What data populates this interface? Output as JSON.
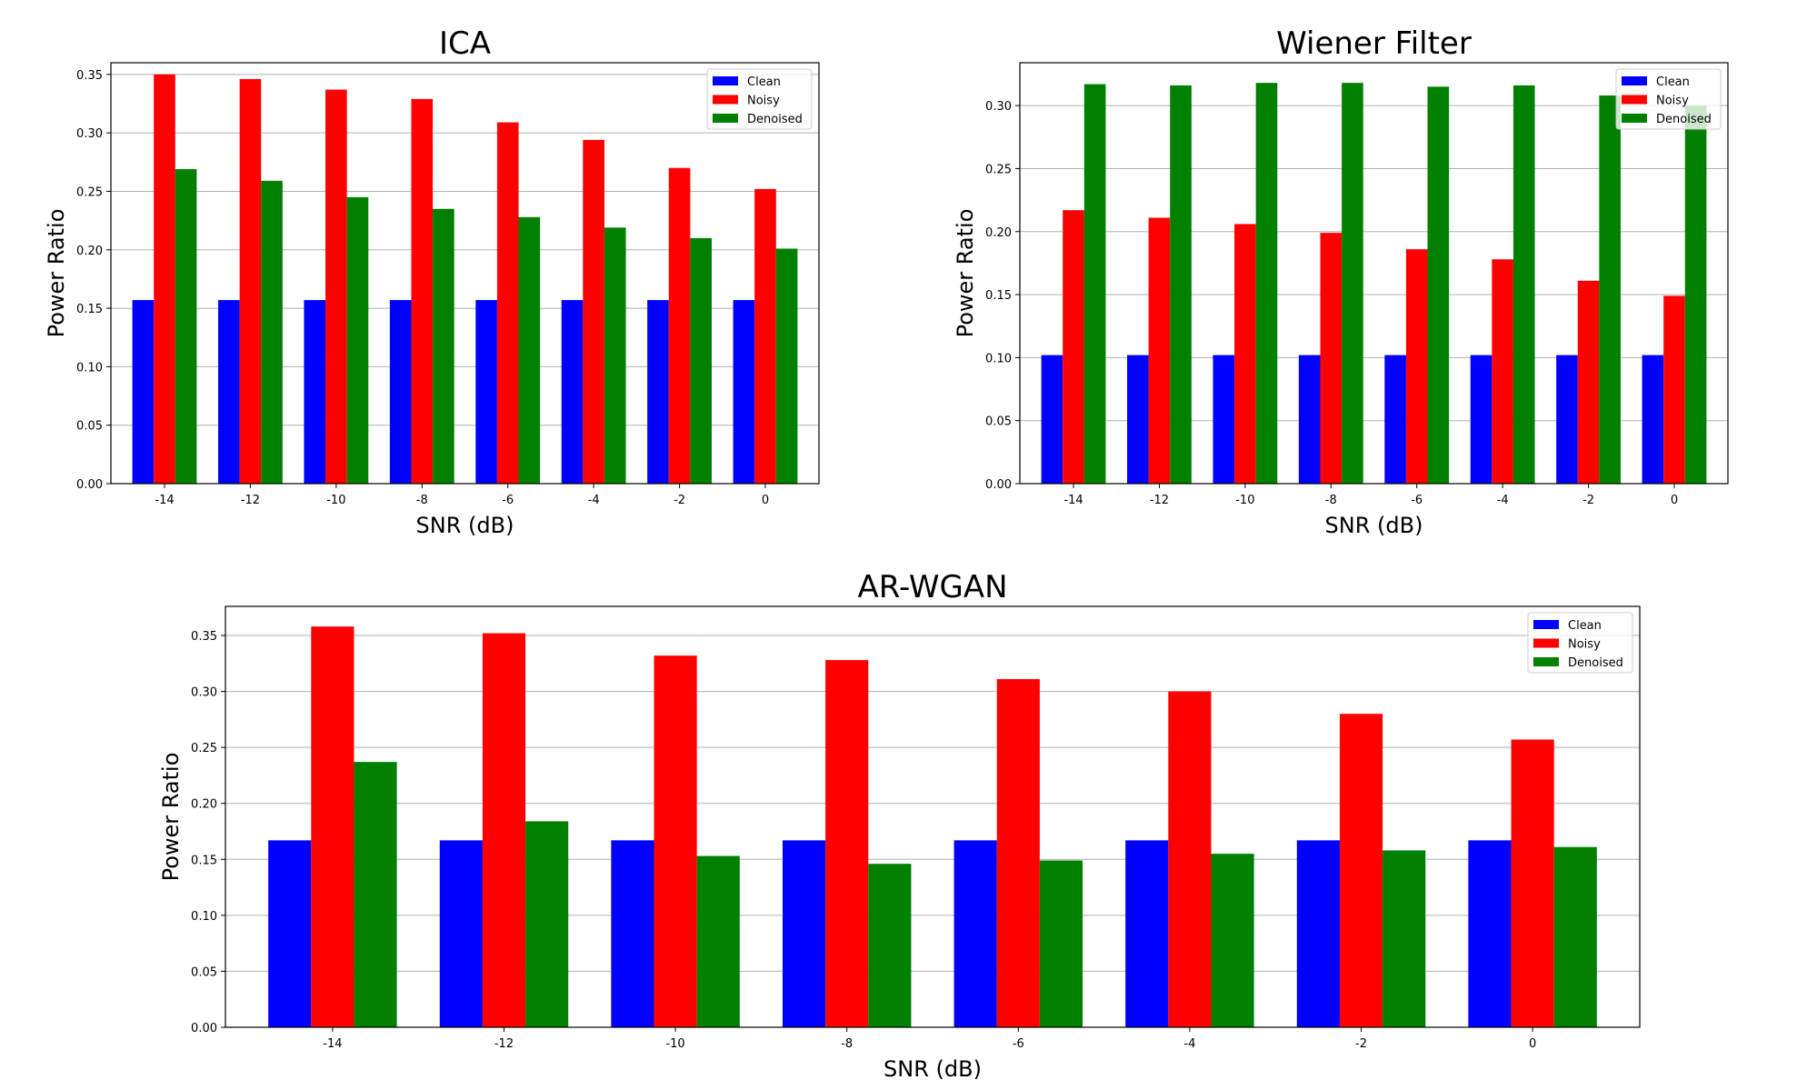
{
  "chart_data": [
    {
      "type": "bar",
      "title": "ICA",
      "xlabel": "SNR (dB)",
      "ylabel": "Power Ratio",
      "categories": [
        "-14",
        "-12",
        "-10",
        "-8",
        "-6",
        "-4",
        "-2",
        "0"
      ],
      "ylim": [
        0,
        0.36
      ],
      "yticks": [
        "0.00",
        "0.05",
        "0.10",
        "0.15",
        "0.20",
        "0.25",
        "0.30",
        "0.35"
      ],
      "grid": "horizontal",
      "legend": "top-right",
      "series": [
        {
          "name": "Clean",
          "color": "#0000ff",
          "values": [
            0.157,
            0.157,
            0.157,
            0.157,
            0.157,
            0.157,
            0.157,
            0.157
          ]
        },
        {
          "name": "Noisy",
          "color": "#ff0000",
          "values": [
            0.35,
            0.346,
            0.337,
            0.329,
            0.309,
            0.294,
            0.27,
            0.252
          ]
        },
        {
          "name": "Denoised",
          "color": "#008000",
          "values": [
            0.269,
            0.259,
            0.245,
            0.235,
            0.228,
            0.219,
            0.21,
            0.201
          ]
        }
      ]
    },
    {
      "type": "bar",
      "title": "Wiener Filter",
      "xlabel": "SNR (dB)",
      "ylabel": "Power Ratio",
      "categories": [
        "-14",
        "-12",
        "-10",
        "-8",
        "-6",
        "-4",
        "-2",
        "0"
      ],
      "ylim": [
        0,
        0.334
      ],
      "yticks": [
        "0.00",
        "0.05",
        "0.10",
        "0.15",
        "0.20",
        "0.25",
        "0.30"
      ],
      "grid": "horizontal",
      "legend": "top-right",
      "series": [
        {
          "name": "Clean",
          "color": "#0000ff",
          "values": [
            0.102,
            0.102,
            0.102,
            0.102,
            0.102,
            0.102,
            0.102,
            0.102
          ]
        },
        {
          "name": "Noisy",
          "color": "#ff0000",
          "values": [
            0.217,
            0.211,
            0.206,
            0.199,
            0.186,
            0.178,
            0.161,
            0.149
          ]
        },
        {
          "name": "Denoised",
          "color": "#008000",
          "values": [
            0.317,
            0.316,
            0.318,
            0.318,
            0.315,
            0.316,
            0.308,
            0.3
          ]
        }
      ]
    },
    {
      "type": "bar",
      "title": "AR-WGAN",
      "xlabel": "SNR (dB)",
      "ylabel": "Power Ratio",
      "categories": [
        "-14",
        "-12",
        "-10",
        "-8",
        "-6",
        "-4",
        "-2",
        "0"
      ],
      "ylim": [
        0,
        0.376
      ],
      "yticks": [
        "0.00",
        "0.05",
        "0.10",
        "0.15",
        "0.20",
        "0.25",
        "0.30",
        "0.35"
      ],
      "grid": "horizontal",
      "legend": "top-right",
      "series": [
        {
          "name": "Clean",
          "color": "#0000ff",
          "values": [
            0.167,
            0.167,
            0.167,
            0.167,
            0.167,
            0.167,
            0.167,
            0.167
          ]
        },
        {
          "name": "Noisy",
          "color": "#ff0000",
          "values": [
            0.358,
            0.352,
            0.332,
            0.328,
            0.311,
            0.3,
            0.28,
            0.257
          ]
        },
        {
          "name": "Denoised",
          "color": "#008000",
          "values": [
            0.237,
            0.184,
            0.153,
            0.146,
            0.149,
            0.155,
            0.158,
            0.161
          ]
        }
      ]
    }
  ]
}
